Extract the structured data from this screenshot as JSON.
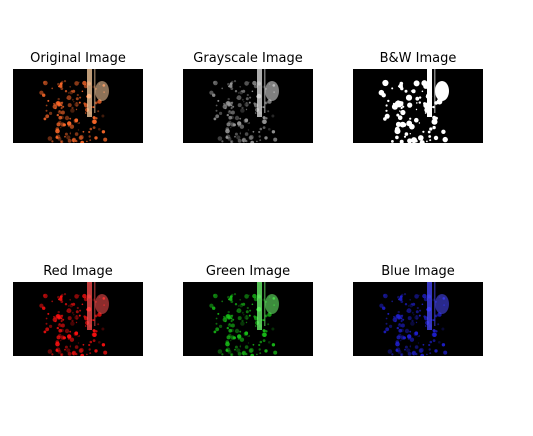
{
  "figure": {
    "panels": [
      {
        "id": "original",
        "title": "Original Image",
        "tint": "#ff6a2a",
        "accent": "#ffd0a0"
      },
      {
        "id": "grayscale",
        "title": "Grayscale Image",
        "tint": "#9a9a9a",
        "accent": "#e8e8e8"
      },
      {
        "id": "bw",
        "title": "B&W Image",
        "tint": "#ffffff",
        "accent": "#ffffff"
      },
      {
        "id": "red",
        "title": "Red Image",
        "tint": "#ff1010",
        "accent": "#ff5050"
      },
      {
        "id": "green",
        "title": "Green Image",
        "tint": "#18c018",
        "accent": "#70ff70"
      },
      {
        "id": "blue",
        "title": "Blue Image",
        "tint": "#2020d0",
        "accent": "#4a4aff"
      }
    ]
  }
}
